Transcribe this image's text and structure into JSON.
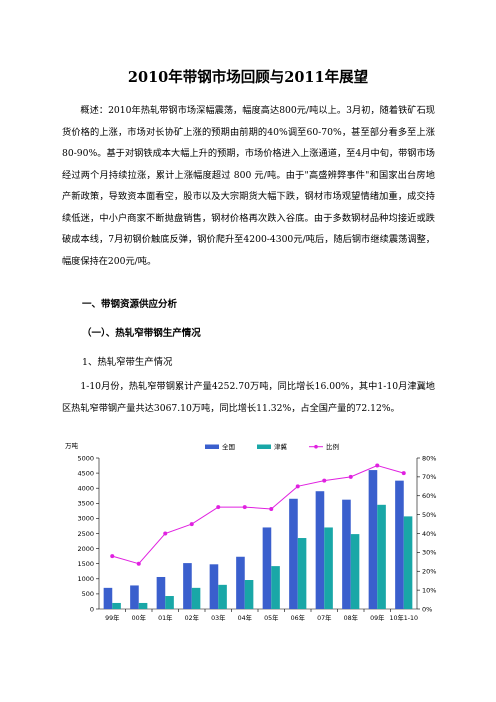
{
  "document": {
    "title": "2010年带钢市场回顾与2011年展望",
    "overview": "概述：2010年热轧带钢市场深幅震荡，幅度高达800元/吨以上。3月初，随着铁矿石现货价格的上涨，市场对长协矿上涨的预期由前期的40%调至60-70%，甚至部分看多至上涨80-90%。基于对钢铁成本大幅上升的预期，市场价格进入上涨通道，至4月中旬，带钢市场经过两个月持续拉涨，累计上涨幅度超过 800 元/吨。由于\"高盛辨弊事件\"和国家出台房地产新政策，导致资本面看空，股市以及大宗期货大幅下跌，钢材市场观望情绪加重，成交持续低迷，中小户商家不断抛盘销售，钢材价格再次跌入谷底。由于多数钢材品种均接近或跌破成本线，7月初钢价触底反弹，钢价爬升至4200-4300元/吨后，随后钢市继续震荡调整，幅度保持在200元/吨。",
    "section1": "一、带钢资源供应分析",
    "subsection1": "（一）、热轧窄带钢生产情况",
    "item1": "1、热轧窄带生产情况",
    "para2": "1-10月份，热轧窄带钢累计产量4252.70万吨，同比增长16.00%，其中1-10月津冀地区热轧窄带钢产量共达3067.10万吨，同比增长11.32%，占全国产量的72.12%。"
  },
  "chart_data": {
    "type": "bar",
    "unit_label": "万吨",
    "categories": [
      "99年",
      "00年",
      "01年",
      "02年",
      "03年",
      "04年",
      "05年",
      "06年",
      "07年",
      "08年",
      "09年",
      "10年1-10"
    ],
    "series": [
      {
        "name": "全国",
        "type": "bar",
        "axis": "left",
        "color": "#3a5fcd",
        "values": [
          700,
          780,
          1060,
          1520,
          1480,
          1730,
          2700,
          3650,
          3900,
          3620,
          4600,
          4250
        ]
      },
      {
        "name": "津冀",
        "type": "bar",
        "axis": "left",
        "color": "#19a7a7",
        "values": [
          200,
          200,
          430,
          700,
          800,
          960,
          1420,
          2350,
          2700,
          2480,
          3450,
          3067
        ]
      },
      {
        "name": "比例",
        "type": "line",
        "axis": "right",
        "color": "#e020e0",
        "values": [
          28,
          24,
          40,
          45,
          54,
          54,
          53,
          65,
          68,
          70,
          76,
          72
        ]
      }
    ],
    "y_left": {
      "min": 0,
      "max": 5000,
      "step": 500,
      "ticks": [
        "0",
        "500",
        "1000",
        "1500",
        "2000",
        "2500",
        "3000",
        "3500",
        "4000",
        "4500",
        "5000"
      ]
    },
    "y_right": {
      "min": 0,
      "max": 80,
      "step": 10,
      "ticks": [
        "0%",
        "10%",
        "20%",
        "30%",
        "40%",
        "50%",
        "60%",
        "70%",
        "80%"
      ]
    },
    "legend": "top",
    "grid": false
  }
}
